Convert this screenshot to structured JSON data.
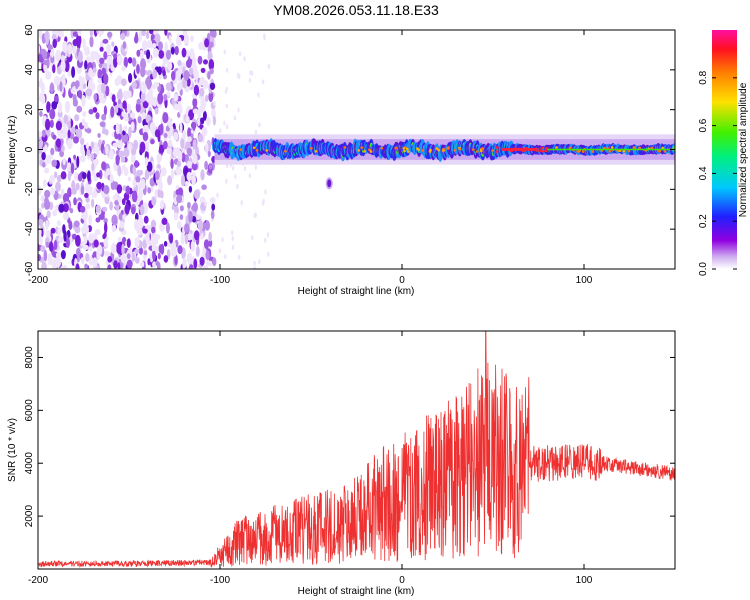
{
  "title": "YM08.2026.053.11.18.E33",
  "colors": {
    "snr_line": "#ee3030",
    "axis": "#000000",
    "scatter_dense": "#7a20e0",
    "scatter_light": "#d8b8f0"
  },
  "chart_data": [
    {
      "type": "heatmap",
      "name": "spectrogram",
      "xlabel": "Height of straight line (km)",
      "ylabel": "Frequency (Hz)",
      "xlim": [
        -200,
        150
      ],
      "ylim": [
        -60,
        60
      ],
      "xticks": [
        -200,
        -100,
        0,
        100
      ],
      "yticks": [
        -60,
        -40,
        -20,
        0,
        20,
        40,
        60
      ],
      "band_center_hz": 0,
      "band_halfwidth_hz": 4,
      "noise_region_x": [
        -200,
        -103
      ],
      "band_start_x": -103,
      "isolated_patch": {
        "x": -40,
        "y": -17
      }
    },
    {
      "type": "line",
      "name": "snr",
      "xlabel": "Height of straight line (km)",
      "ylabel": "SNR (10 * v/v)",
      "xlim": [
        -200,
        150
      ],
      "ylim": [
        0,
        9000
      ],
      "xticks": [
        -200,
        -100,
        0,
        100
      ],
      "yticks": [
        2000,
        4000,
        6000,
        8000
      ],
      "envelope": [
        {
          "x": -200,
          "y": 200
        },
        {
          "x": -150,
          "y": 200
        },
        {
          "x": -105,
          "y": 250
        },
        {
          "x": -90,
          "y": 1000
        },
        {
          "x": -70,
          "y": 1300
        },
        {
          "x": -50,
          "y": 1500
        },
        {
          "x": -30,
          "y": 1800
        },
        {
          "x": -10,
          "y": 2500
        },
        {
          "x": 10,
          "y": 3000
        },
        {
          "x": 30,
          "y": 3500
        },
        {
          "x": 45,
          "y": 4200
        },
        {
          "x": 60,
          "y": 4000
        },
        {
          "x": 80,
          "y": 4000
        },
        {
          "x": 100,
          "y": 4100
        },
        {
          "x": 120,
          "y": 3900
        },
        {
          "x": 150,
          "y": 3600
        }
      ],
      "peak": {
        "x": 46,
        "y": 9000
      }
    }
  ],
  "colorbar": {
    "label": "Normalized spectral amplitude",
    "range": [
      0,
      1
    ],
    "ticks": [
      0.0,
      0.2,
      0.4,
      0.6,
      0.8
    ],
    "tick_labels": [
      "0.0",
      "0.2",
      "0.4",
      "0.6",
      "0.8"
    ]
  }
}
